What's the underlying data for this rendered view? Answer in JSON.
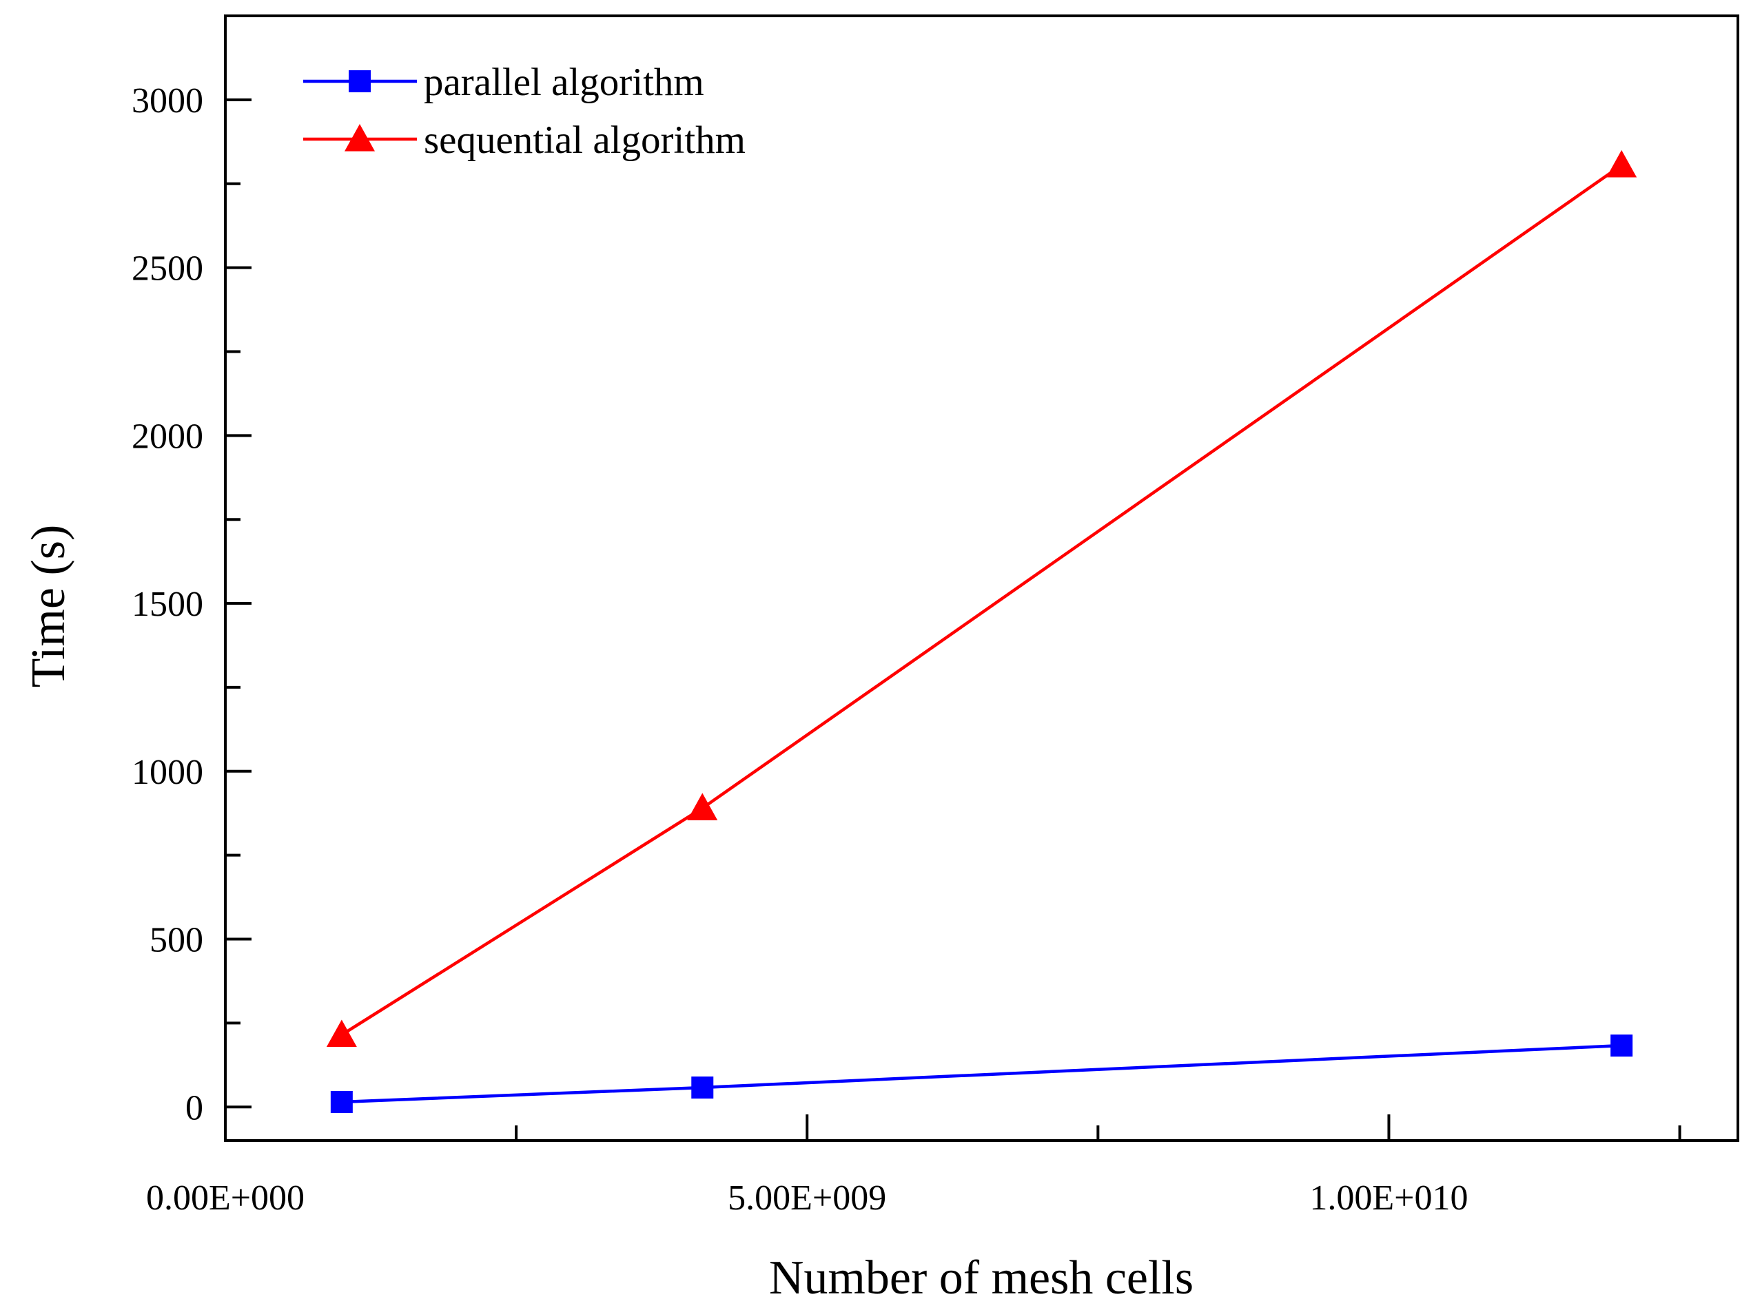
{
  "chart_data": {
    "type": "line",
    "title": "",
    "xlabel": "Number of mesh cells",
    "ylabel": "Time (s)",
    "xlim": [
      0,
      13000000000
    ],
    "ylim": [
      -100,
      3250
    ],
    "x_ticks": [
      {
        "value": 0,
        "label": "0.00E+000"
      },
      {
        "value": 5000000000,
        "label": "5.00E+009"
      },
      {
        "value": 10000000000,
        "label": "1.00E+010"
      }
    ],
    "x_minor_ticks": [
      2500000000,
      7500000000,
      12500000000
    ],
    "y_ticks": [
      {
        "value": 0,
        "label": "0"
      },
      {
        "value": 500,
        "label": "500"
      },
      {
        "value": 1000,
        "label": "1000"
      },
      {
        "value": 1500,
        "label": "1500"
      },
      {
        "value": 2000,
        "label": "2000"
      },
      {
        "value": 2500,
        "label": "2500"
      },
      {
        "value": 3000,
        "label": "3000"
      }
    ],
    "y_minor_ticks": [
      250,
      750,
      1250,
      1750,
      2250,
      2750
    ],
    "grid": false,
    "legend_position": "top-left",
    "series": [
      {
        "name": "parallel algorithm",
        "color": "#0000ff",
        "marker": "square",
        "x": [
          1000000000,
          4100000000,
          12000000000
        ],
        "values": [
          15,
          58,
          183
        ]
      },
      {
        "name": "sequential algorithm",
        "color": "#ff0000",
        "marker": "triangle",
        "x": [
          1000000000,
          4100000000,
          12000000000
        ],
        "values": [
          215,
          890,
          2805
        ]
      }
    ]
  }
}
